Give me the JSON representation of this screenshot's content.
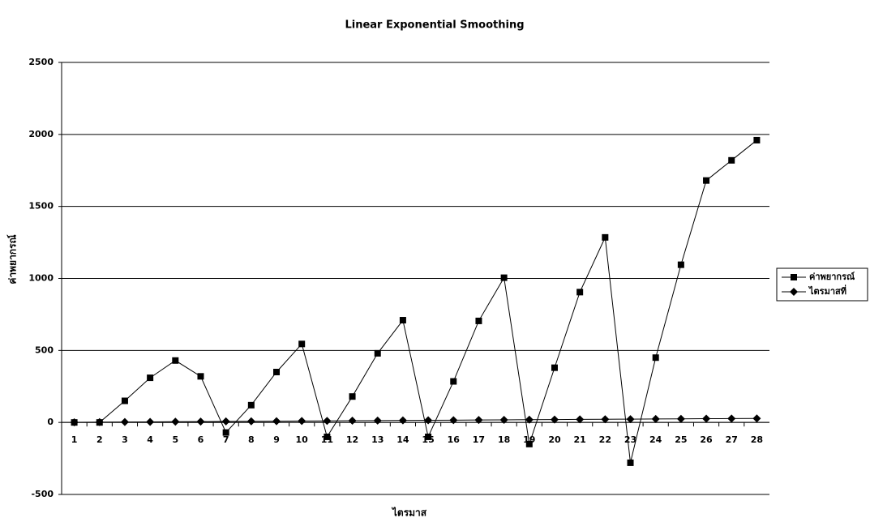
{
  "chart_data": {
    "type": "line",
    "title": "Linear Exponential Smoothing",
    "x_label": "ไตรมาส",
    "y_label": "ค่าพยากรณ์",
    "categories": [
      1,
      2,
      3,
      4,
      5,
      6,
      7,
      8,
      9,
      10,
      11,
      12,
      13,
      14,
      15,
      16,
      17,
      18,
      19,
      20,
      21,
      22,
      23,
      24,
      25,
      26,
      27,
      28
    ],
    "series": [
      {
        "name": "ค่าพยากรณ์",
        "color": "#000000",
        "marker": "square",
        "values": [
          0,
          0,
          150,
          310,
          430,
          320,
          -70,
          120,
          350,
          545,
          -100,
          180,
          480,
          710,
          -100,
          285,
          705,
          1005,
          -150,
          380,
          905,
          1285,
          -280,
          450,
          1095,
          1680,
          1820,
          1960
        ]
      },
      {
        "name": "ไตรมาสที่",
        "color": "#000000",
        "marker": "diamond",
        "values": [
          1,
          2,
          3,
          4,
          5,
          6,
          7,
          8,
          9,
          10,
          11,
          12,
          13,
          14,
          15,
          16,
          17,
          18,
          19,
          20,
          21,
          22,
          23,
          24,
          25,
          26,
          27,
          28
        ]
      }
    ],
    "ylim": [
      -500,
      2500
    ],
    "yticks": [
      -500,
      0,
      500,
      1000,
      1500,
      2000,
      2500
    ],
    "grid": true,
    "legend": "right"
  }
}
